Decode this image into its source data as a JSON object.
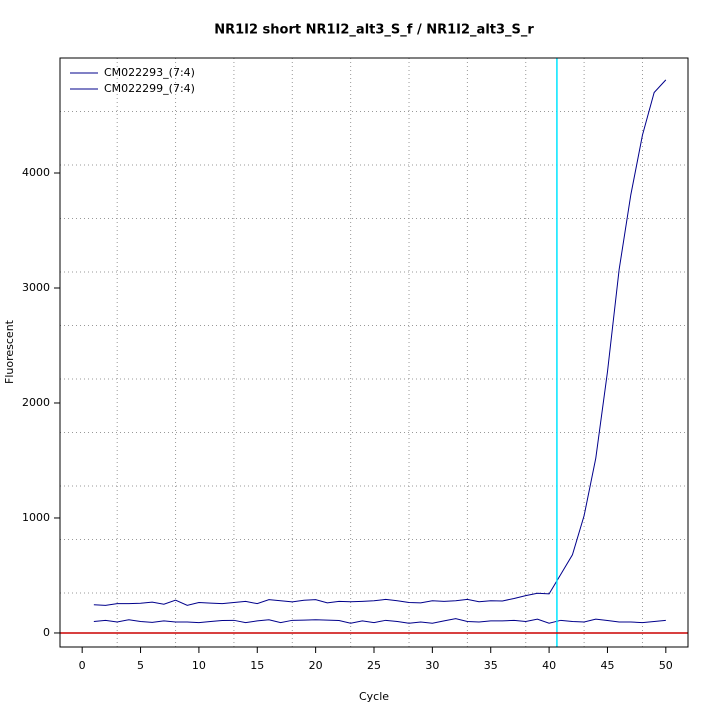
{
  "chart_data": {
    "type": "line",
    "title": "NR1I2 short NR1I2_alt3_S_f / NR1I2_alt3_S_r",
    "x_label": "Cycle",
    "y_label": "Fluorescent",
    "x": [
      1,
      2,
      3,
      4,
      5,
      6,
      7,
      8,
      9,
      10,
      11,
      12,
      13,
      14,
      15,
      16,
      17,
      18,
      19,
      20,
      21,
      22,
      23,
      24,
      25,
      26,
      27,
      28,
      29,
      30,
      31,
      32,
      33,
      34,
      35,
      36,
      37,
      38,
      39,
      40,
      41,
      42,
      43,
      44,
      45,
      46,
      47,
      48,
      49,
      50
    ],
    "series": [
      {
        "name": "CM022293_(7:4)",
        "color": "#00008b",
        "values": [
          245,
          240,
          255,
          255,
          258,
          268,
          250,
          285,
          240,
          265,
          260,
          255,
          265,
          275,
          255,
          290,
          280,
          270,
          285,
          290,
          262,
          275,
          272,
          275,
          280,
          292,
          280,
          265,
          262,
          280,
          275,
          280,
          292,
          272,
          280,
          278,
          300,
          325,
          345,
          340,
          510,
          680,
          1020,
          1520,
          2270,
          3160,
          3810,
          4330,
          4700,
          4810
        ]
      },
      {
        "name": "CM022299_(7:4)",
        "color": "#00008b",
        "values": [
          100,
          110,
          95,
          115,
          100,
          92,
          105,
          95,
          95,
          90,
          100,
          108,
          110,
          90,
          105,
          115,
          90,
          110,
          112,
          115,
          112,
          108,
          85,
          105,
          90,
          110,
          100,
          85,
          95,
          85,
          105,
          125,
          100,
          95,
          105,
          105,
          110,
          100,
          120,
          85,
          110,
          100,
          95,
          120,
          108,
          95,
          95,
          90,
          100,
          110
        ]
      }
    ],
    "xlim": [
      -1.9,
      51.9
    ],
    "ylim": [
      -122,
      5000
    ],
    "xticks": [
      0,
      5,
      10,
      15,
      20,
      25,
      30,
      35,
      40,
      45,
      50
    ],
    "yticks": [
      0,
      1000,
      2000,
      3000,
      4000
    ],
    "xgrid": [
      3,
      8,
      13,
      18,
      23,
      28,
      33,
      38,
      43,
      48
    ],
    "ygrid": [
      348,
      813,
      1278,
      1743,
      2209,
      2674,
      3139,
      3604,
      4070,
      4535
    ],
    "vline": {
      "value": 40.67,
      "color": "#00e5ff"
    },
    "hline": {
      "value": 0,
      "color": "#cc0000"
    },
    "legend": "top-left"
  }
}
